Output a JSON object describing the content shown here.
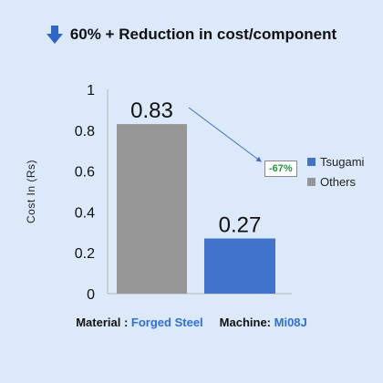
{
  "headline": {
    "icon": "down-arrow-icon",
    "text": "60% + Reduction in cost/component",
    "icon_color": "#2d66c7"
  },
  "chart_data": {
    "type": "bar",
    "categories": [
      "",
      ""
    ],
    "series": [
      {
        "name": "Tsugami",
        "values": [
          null,
          0.27
        ],
        "color": "#3f73cc"
      },
      {
        "name": "Others",
        "values": [
          0.83,
          null
        ],
        "color": "#969696"
      }
    ],
    "bars": [
      {
        "series": "Others",
        "value": 0.83,
        "label": "0.83"
      },
      {
        "series": "Tsugami",
        "value": 0.27,
        "label": "0.27"
      }
    ],
    "ylabel": "Cost In (Rs)",
    "xlabel": "",
    "ylim": [
      0,
      1
    ],
    "yticks": [
      "0",
      "0.2",
      "0.4",
      "0.6",
      "0.8",
      "1"
    ],
    "grid": false,
    "legend_position": "right",
    "annotation": {
      "text": "-67%",
      "color": "#1a9a3a"
    }
  },
  "footer": {
    "material_label": "Material :",
    "material_value": "Forged Steel",
    "machine_label": "Machine:",
    "machine_value": "Mi08J"
  }
}
